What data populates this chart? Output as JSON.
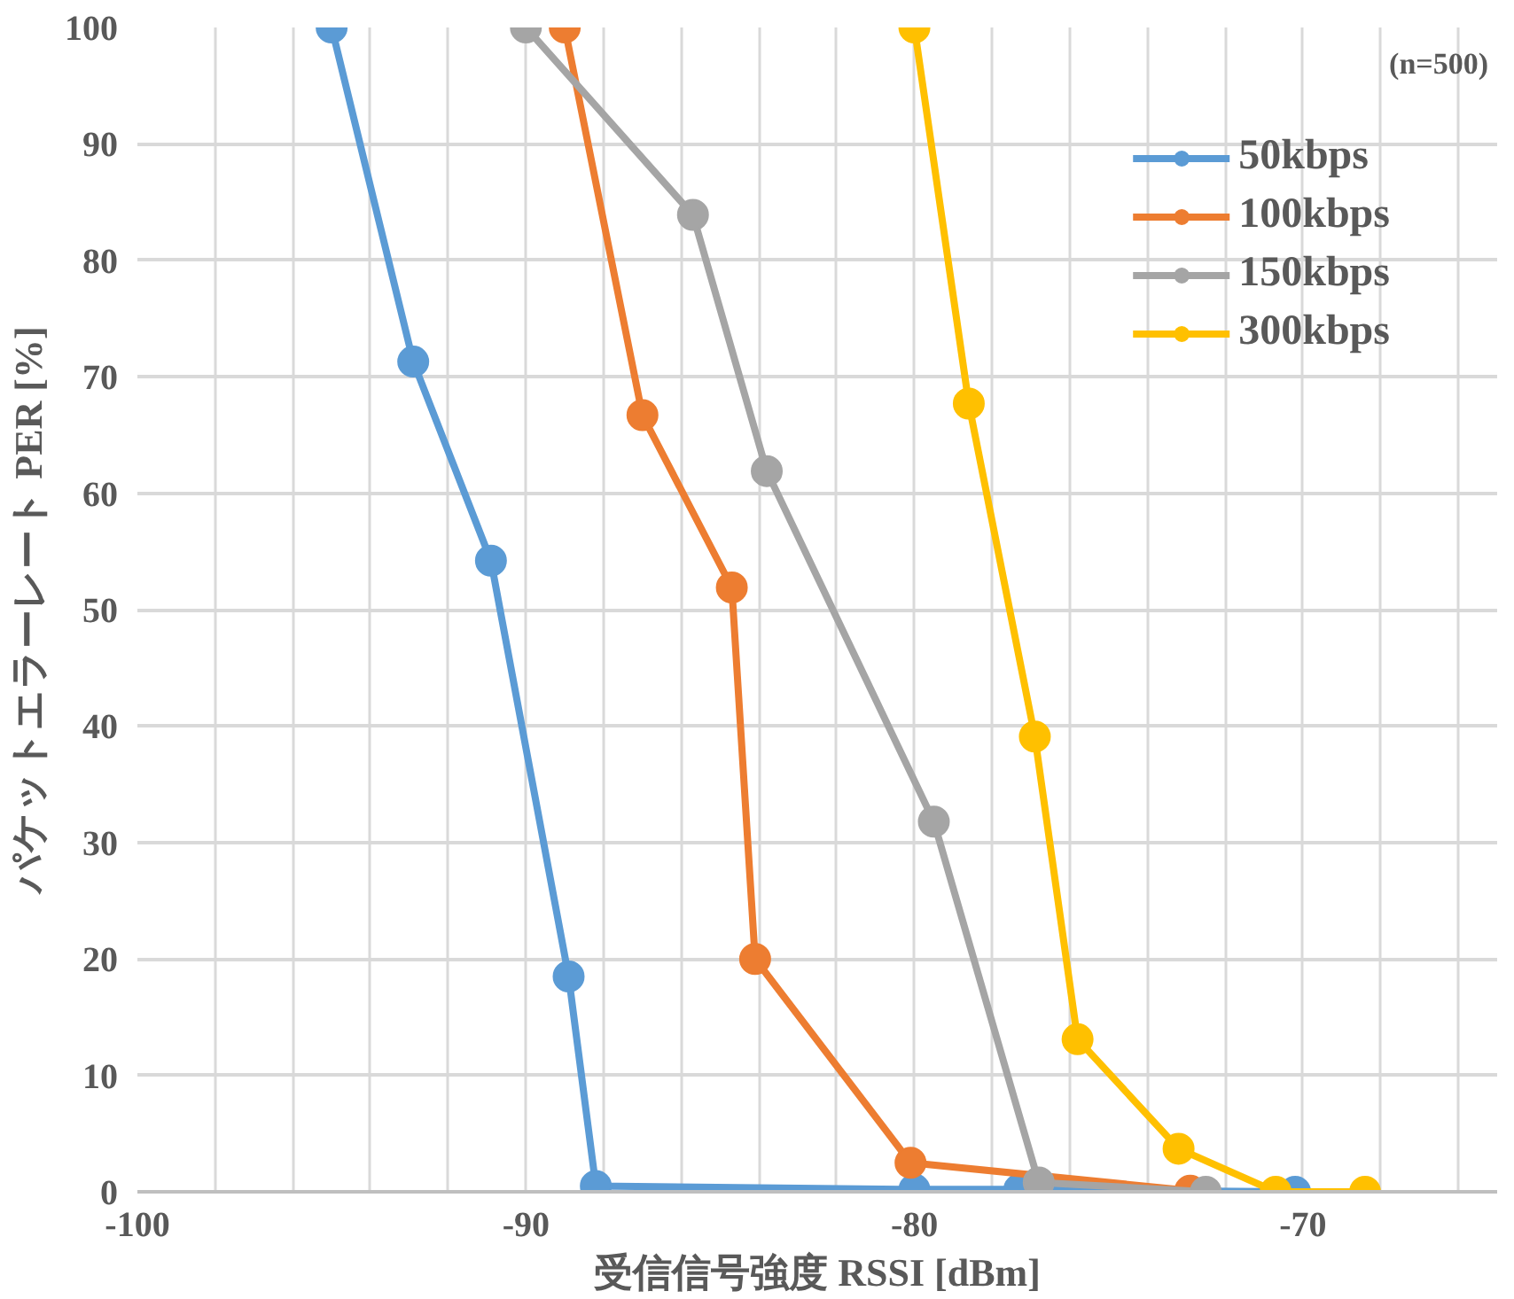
{
  "chart_data": {
    "type": "line",
    "xlabel": "受信信号強度 RSSI [dBm]",
    "ylabel": "パケットエラーレート PER [%]",
    "annotations": [
      "(n=500)"
    ],
    "xlim": [
      -100,
      -65
    ],
    "ylim": [
      0,
      100
    ],
    "xticks": [
      -100,
      {
        "value": -98,
        "label": null
      },
      {
        "value": -96,
        "label": null
      },
      {
        "value": -94,
        "label": null
      },
      {
        "value": -92,
        "label": null
      },
      -90,
      {
        "value": -88,
        "label": null
      },
      {
        "value": -86,
        "label": null
      },
      {
        "value": -84,
        "label": null
      },
      {
        "value": -82,
        "label": null
      },
      -80,
      {
        "value": -78,
        "label": null
      },
      {
        "value": -76,
        "label": null
      },
      {
        "value": -74,
        "label": null
      },
      {
        "value": -72,
        "label": null
      },
      -70,
      {
        "value": -68,
        "label": null
      },
      {
        "value": -66,
        "label": null
      }
    ],
    "yticks": [
      0,
      10,
      20,
      30,
      40,
      50,
      60,
      70,
      80,
      90,
      100
    ],
    "grid": true,
    "legend": "top right",
    "marker": "circle",
    "line_style": "solid",
    "series": [
      {
        "name": "50kbps",
        "color": "#5b9bd5",
        "x": [
          -95.0,
          -92.9,
          -90.9,
          -88.9,
          -88.2,
          -80.0,
          -77.3,
          -70.2
        ],
        "values": [
          100,
          71.3,
          54.2,
          18.5,
          0.5,
          0.2,
          0.2,
          0
        ]
      },
      {
        "name": "100kbps",
        "color": "#ed7d31",
        "x": [
          -89.0,
          -87.0,
          -84.7,
          -84.1,
          -80.1,
          -72.9
        ],
        "values": [
          100,
          66.7,
          51.9,
          20.0,
          2.5,
          0.1
        ]
      },
      {
        "name": "150kbps",
        "color": "#a5a5a5",
        "x": [
          -90.0,
          -85.7,
          -83.8,
          -79.5,
          -76.8,
          -72.5
        ],
        "values": [
          100,
          83.9,
          61.9,
          31.8,
          0.8,
          0
        ]
      },
      {
        "name": "300kbps",
        "color": "#ffc000",
        "x": [
          -80.0,
          -78.6,
          -76.9,
          -75.8,
          -73.2,
          -70.7,
          -68.4
        ],
        "values": [
          100,
          67.7,
          39.1,
          13.1,
          3.7,
          0,
          0
        ]
      }
    ]
  }
}
